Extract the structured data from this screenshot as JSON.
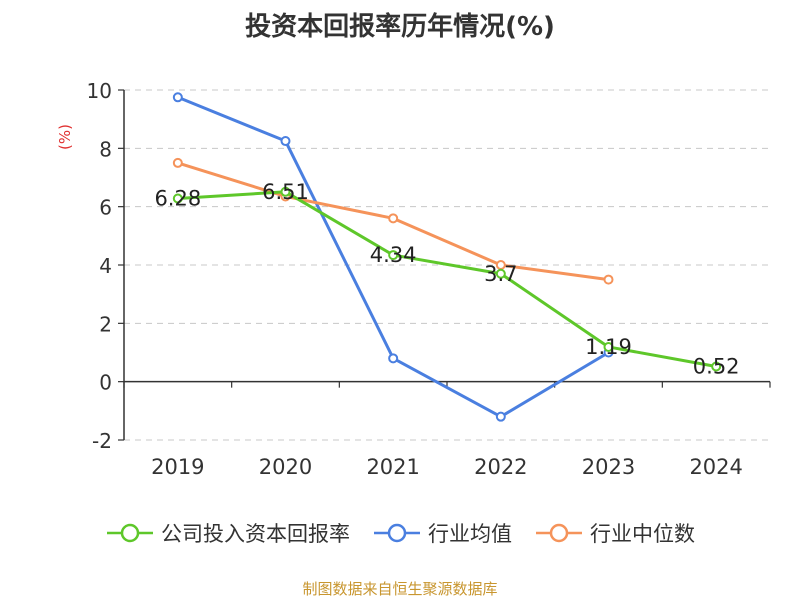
{
  "chart_data": {
    "type": "line",
    "title": "投资本回报率历年情况(%)",
    "ylabel": "(%)",
    "xlabel": "",
    "categories": [
      "2019",
      "2020",
      "2021",
      "2022",
      "2023",
      "2024"
    ],
    "ylim": [
      -2,
      10
    ],
    "yticks": [
      -2,
      0,
      2,
      4,
      6,
      8,
      10
    ],
    "grid": true,
    "legend_position": "bottom",
    "series": [
      {
        "name": "公司投入资本回报率",
        "color": "#5ec72a",
        "values": [
          6.28,
          6.51,
          4.34,
          3.7,
          1.19,
          0.52
        ],
        "data_labels": [
          "6.28",
          "6.51",
          "4.34",
          "3.7",
          "1.19",
          "0.52"
        ]
      },
      {
        "name": "行业均值",
        "color": "#4a7fe0",
        "values": [
          9.75,
          8.25,
          0.8,
          -1.2,
          1.0,
          null
        ]
      },
      {
        "name": "行业中位数",
        "color": "#f5935a",
        "values": [
          7.5,
          6.35,
          5.6,
          4.0,
          3.5,
          null
        ]
      }
    ]
  },
  "source_text": "制图数据来自恒生聚源数据库"
}
